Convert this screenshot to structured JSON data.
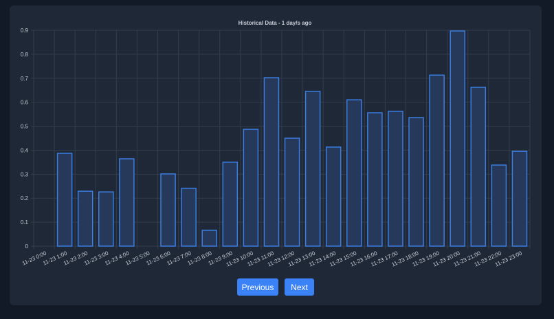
{
  "chart_data": {
    "type": "bar",
    "title": "Historical Data - 1 day/s ago",
    "categories": [
      "11-23 0:00",
      "11-23 1:00",
      "11-23 2:00",
      "11-23 3:00",
      "11-23 4:00",
      "11-23 5:00",
      "11-23 6:00",
      "11-23 7:00",
      "11-23 8:00",
      "11-23 9:00",
      "11-23 10:00",
      "11-23 11:00",
      "11-23 12:00",
      "11-23 13:00",
      "11-23 14:00",
      "11-23 15:00",
      "11-23 16:00",
      "11-23 17:00",
      "11-23 18:00",
      "11-23 19:00",
      "11-23 20:00",
      "11-23 21:00",
      "11-23 22:00",
      "11-23 23:00"
    ],
    "values": [
      null,
      0.387,
      0.229,
      0.226,
      0.364,
      null,
      0.301,
      0.241,
      0.066,
      0.35,
      0.487,
      0.702,
      0.45,
      0.645,
      0.413,
      0.61,
      0.556,
      0.562,
      0.536,
      0.713,
      0.897,
      0.662,
      0.338,
      0.395
    ],
    "ylim": [
      0,
      0.9
    ],
    "yticks": [
      "0",
      "0.1",
      "0.2",
      "0.3",
      "0.4",
      "0.5",
      "0.6",
      "0.7",
      "0.8",
      "0.9"
    ],
    "grid": true,
    "bar_fill": "#26395a",
    "bar_stroke": "#3b7de0"
  },
  "pagination": {
    "previous_label": "Previous",
    "next_label": "Next"
  },
  "colors": {
    "accent": "#3b82f6",
    "card": "#1f2837",
    "background": "#131a27"
  }
}
